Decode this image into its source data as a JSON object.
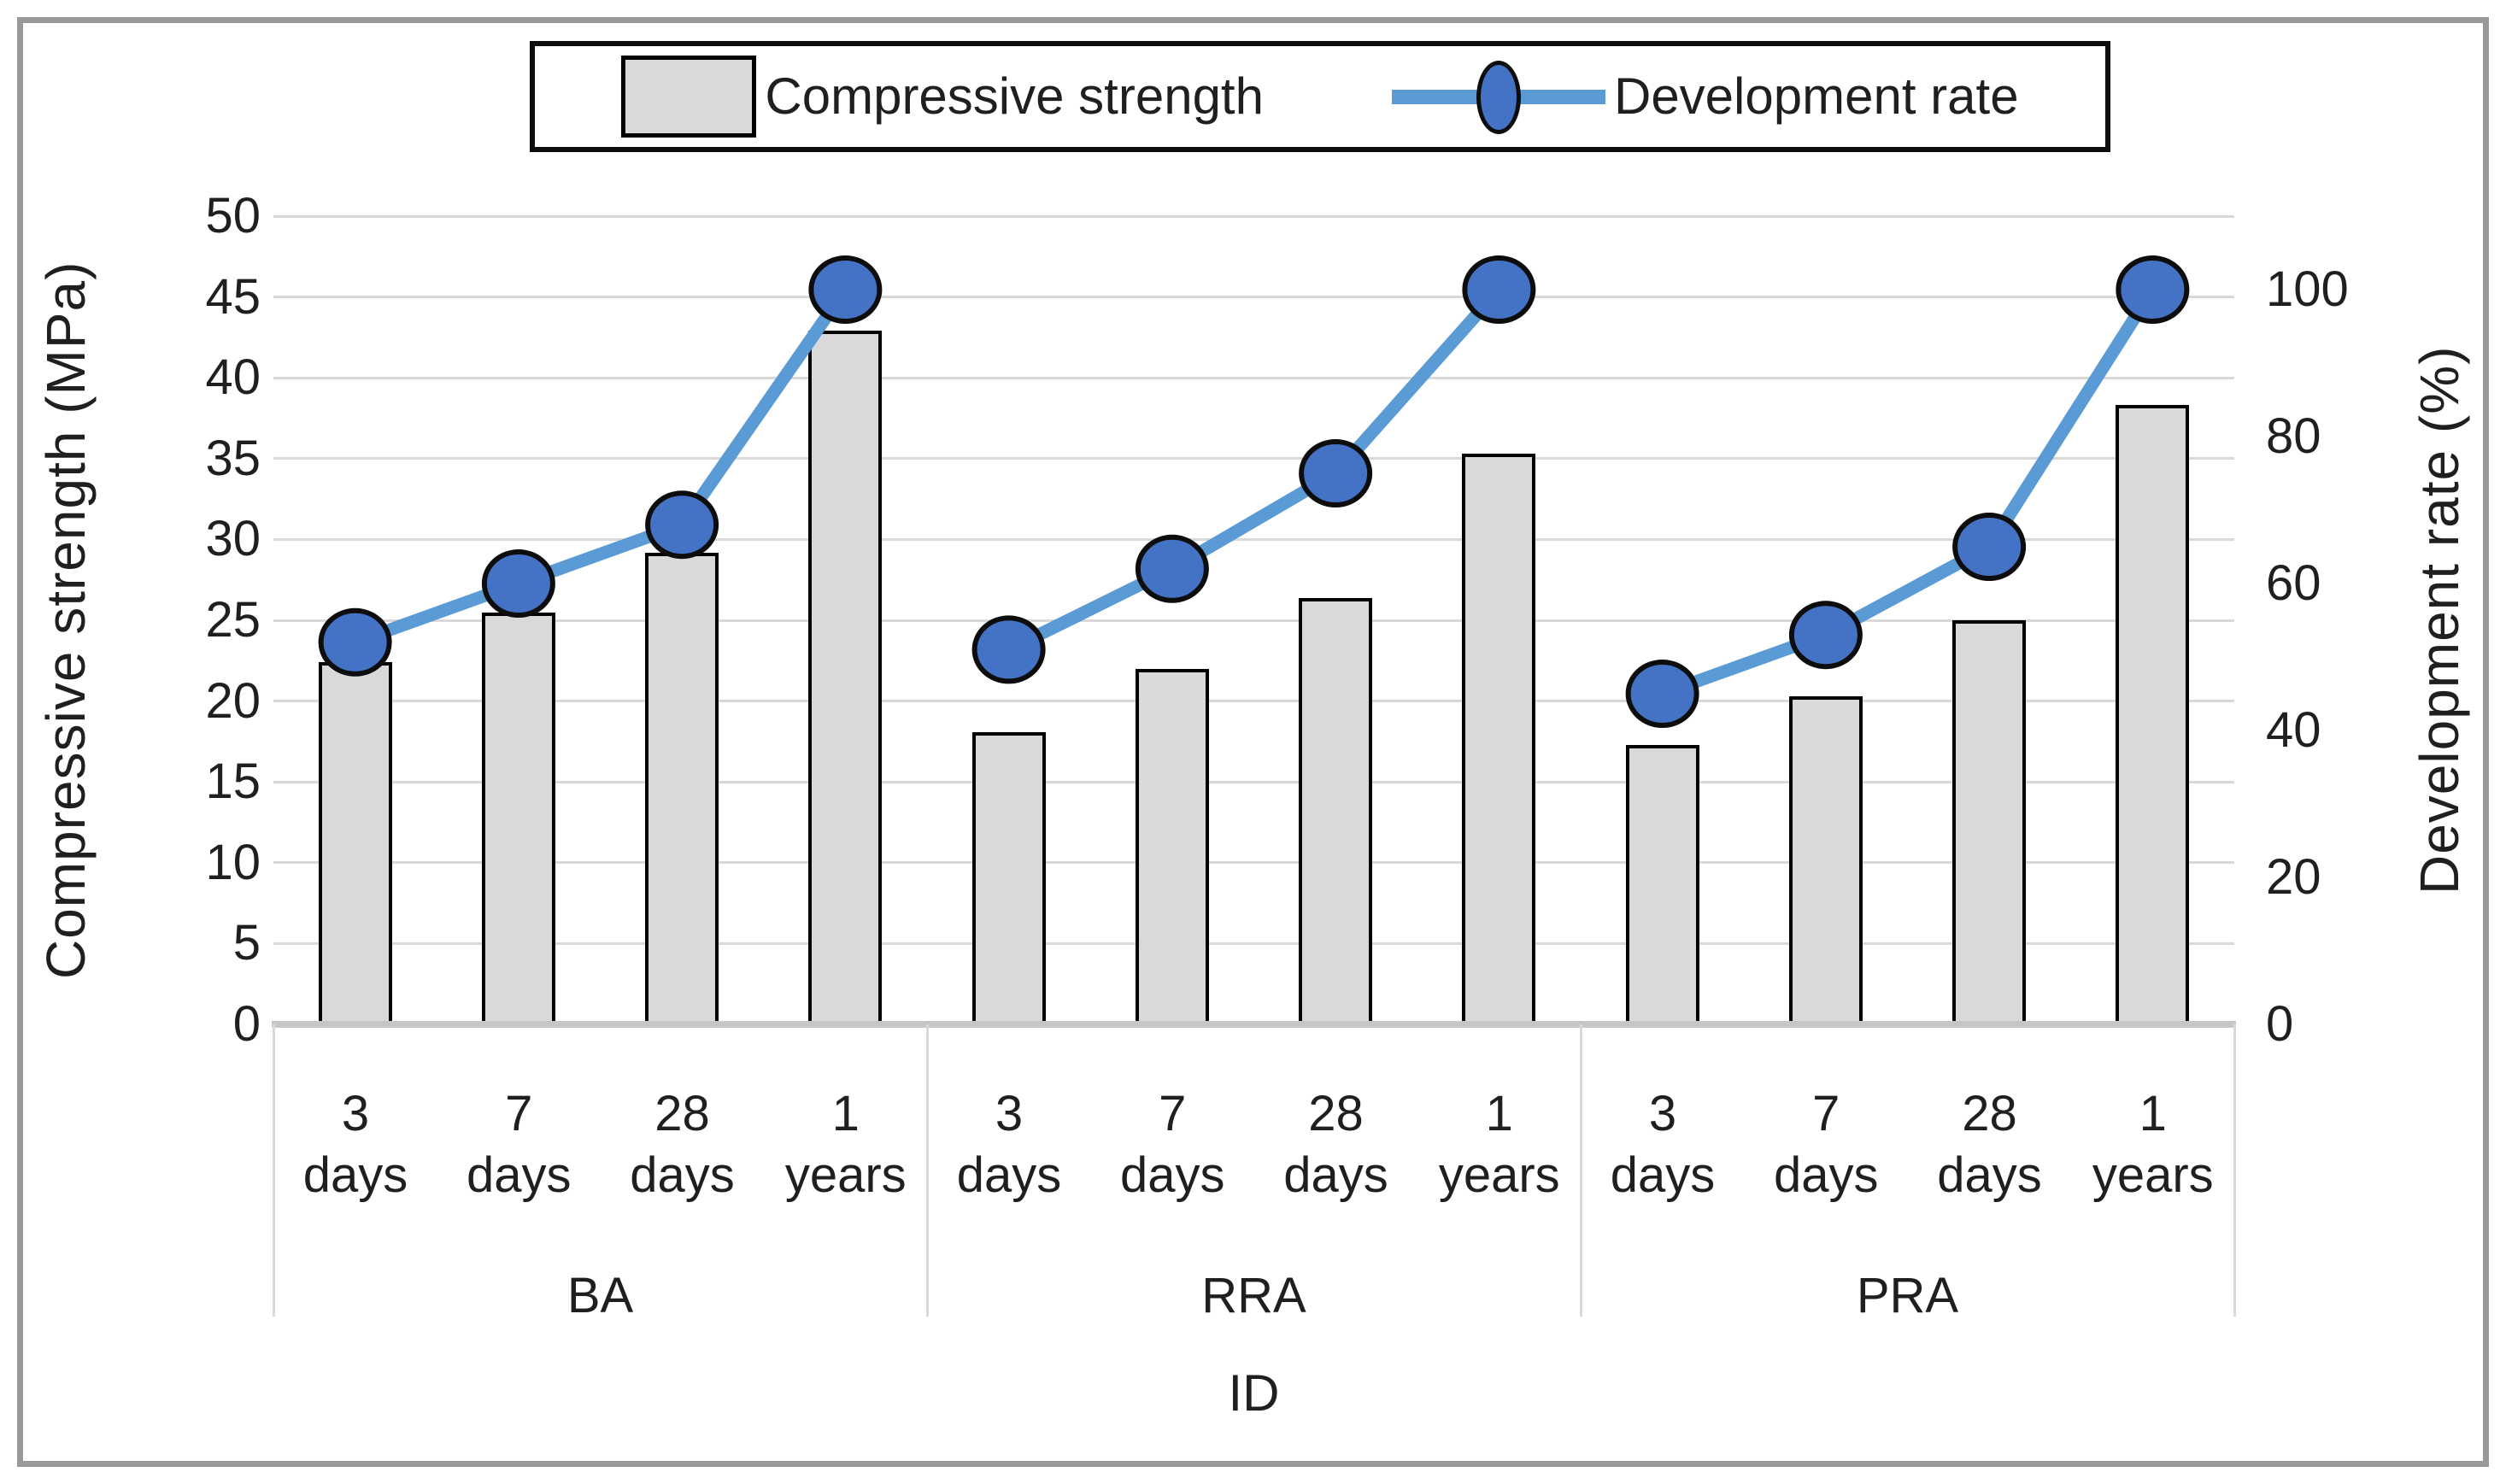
{
  "colors": {
    "text": "#1f1f1f",
    "frame_border": "#999999",
    "legend_border": "#0d0d0d",
    "bar_fill": "#d9d9d9",
    "bar_border": "#000000",
    "line": "#5b9bd5",
    "marker_fill": "#4472c4",
    "marker_border": "#0d0d0d",
    "gridline": "#d9d9d9",
    "axis_line": "#c6c6c6"
  },
  "legend": {
    "bar_label": "Compressive strength",
    "line_label": "Development rate"
  },
  "chart_data": {
    "type": "combo-bar-line",
    "title": "",
    "legend_position": "top",
    "grid": "horizontal-major",
    "group_labels": [
      "BA",
      "RRA",
      "PRA"
    ],
    "categories": [
      {
        "line1": "3",
        "line2": "days"
      },
      {
        "line1": "7",
        "line2": "days"
      },
      {
        "line1": "28",
        "line2": "days"
      },
      {
        "line1": "1",
        "line2": "years"
      }
    ],
    "series": [
      {
        "name": "Compressive strength",
        "type": "bar",
        "axis": "left",
        "unit": "MPa",
        "values": [
          [
            22.4,
            25.5,
            29.2,
            42.9
          ],
          [
            18.1,
            22.0,
            26.4,
            35.3
          ],
          [
            17.3,
            20.3,
            25.0,
            38.3
          ]
        ]
      },
      {
        "name": "Development rate",
        "type": "line",
        "axis": "right",
        "unit": "%",
        "values": [
          [
            52,
            60,
            68,
            100
          ],
          [
            51,
            62,
            75,
            100
          ],
          [
            45,
            53,
            65,
            100
          ]
        ]
      }
    ],
    "left_axis": {
      "title": "Compressive strength (MPa)",
      "min": 0,
      "max": 50,
      "ticks": [
        50,
        45,
        40,
        35,
        30,
        25,
        20,
        15,
        10,
        5,
        0
      ]
    },
    "right_axis": {
      "title": "Development rate (%)",
      "min": 0,
      "max": 110,
      "ticks": [
        100,
        80,
        60,
        40,
        20,
        0
      ]
    },
    "x_axis": {
      "title": "ID"
    }
  }
}
